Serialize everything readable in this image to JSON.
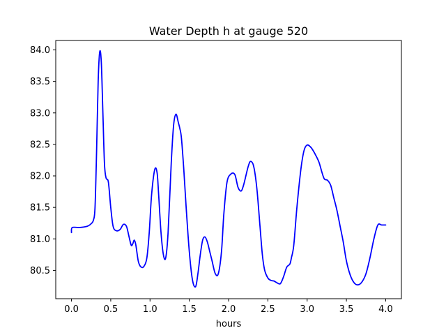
{
  "chart_data": {
    "type": "line",
    "title": "Water Depth h at gauge 520",
    "xlabel": "hours",
    "ylabel": "",
    "xlim": [
      -0.2,
      4.2
    ],
    "ylim": [
      80.05,
      84.15
    ],
    "xticks": [
      0.0,
      0.5,
      1.0,
      1.5,
      2.0,
      2.5,
      3.0,
      3.5,
      4.0
    ],
    "xtick_labels": [
      "0.0",
      "0.5",
      "1.0",
      "1.5",
      "2.0",
      "2.5",
      "3.0",
      "3.5",
      "4.0"
    ],
    "yticks": [
      80.5,
      81.0,
      81.5,
      82.0,
      82.5,
      83.0,
      83.5,
      84.0
    ],
    "ytick_labels": [
      "80.5",
      "81.0",
      "81.5",
      "82.0",
      "82.5",
      "83.0",
      "83.5",
      "84.0"
    ],
    "grid": false,
    "series": [
      {
        "color": "#0000ff",
        "x": [
          0.0,
          0.01,
          0.1,
          0.2,
          0.25,
          0.28,
          0.3,
          0.32,
          0.34,
          0.36,
          0.38,
          0.4,
          0.42,
          0.44,
          0.47,
          0.5,
          0.53,
          0.57,
          0.62,
          0.66,
          0.7,
          0.73,
          0.76,
          0.78,
          0.8,
          0.82,
          0.85,
          0.88,
          0.92,
          0.96,
          0.99,
          1.02,
          1.06,
          1.09,
          1.11,
          1.14,
          1.17,
          1.2,
          1.23,
          1.27,
          1.3,
          1.33,
          1.36,
          1.38,
          1.4,
          1.43,
          1.46,
          1.5,
          1.54,
          1.58,
          1.61,
          1.64,
          1.67,
          1.7,
          1.73,
          1.76,
          1.79,
          1.83,
          1.87,
          1.91,
          1.94,
          1.98,
          2.03,
          2.08,
          2.12,
          2.16,
          2.19,
          2.22,
          2.25,
          2.28,
          2.32,
          2.36,
          2.4,
          2.43,
          2.46,
          2.5,
          2.54,
          2.58,
          2.62,
          2.66,
          2.7,
          2.74,
          2.78,
          2.8,
          2.83,
          2.87,
          2.92,
          2.96,
          3.0,
          3.05,
          3.1,
          3.15,
          3.19,
          3.22,
          3.26,
          3.3,
          3.34,
          3.38,
          3.42,
          3.46,
          3.5,
          3.55,
          3.6,
          3.65,
          3.7,
          3.75,
          3.8,
          3.85,
          3.9,
          3.95,
          4.0
        ],
        "y": [
          81.1,
          81.18,
          81.18,
          81.2,
          81.24,
          81.3,
          81.5,
          82.4,
          83.5,
          83.97,
          83.8,
          83.0,
          82.2,
          81.97,
          81.9,
          81.5,
          81.2,
          81.13,
          81.15,
          81.23,
          81.2,
          81.05,
          80.9,
          80.92,
          80.98,
          80.9,
          80.65,
          80.56,
          80.56,
          80.7,
          81.1,
          81.7,
          82.1,
          82.05,
          81.7,
          81.1,
          80.75,
          80.7,
          81.1,
          82.2,
          82.8,
          82.98,
          82.85,
          82.75,
          82.6,
          82.1,
          81.5,
          80.8,
          80.35,
          80.24,
          80.45,
          80.75,
          80.98,
          81.03,
          80.95,
          80.8,
          80.65,
          80.45,
          80.45,
          80.8,
          81.4,
          81.9,
          82.03,
          82.02,
          81.82,
          81.76,
          81.85,
          82.0,
          82.15,
          82.23,
          82.15,
          81.8,
          81.2,
          80.75,
          80.5,
          80.38,
          80.34,
          80.33,
          80.3,
          80.29,
          80.4,
          80.55,
          80.6,
          80.7,
          80.9,
          81.5,
          82.1,
          82.4,
          82.49,
          82.45,
          82.35,
          82.22,
          82.05,
          81.95,
          81.93,
          81.85,
          81.65,
          81.45,
          81.2,
          80.95,
          80.65,
          80.42,
          80.3,
          80.27,
          80.32,
          80.45,
          80.7,
          81.0,
          81.22,
          81.22,
          81.22
        ]
      }
    ]
  }
}
